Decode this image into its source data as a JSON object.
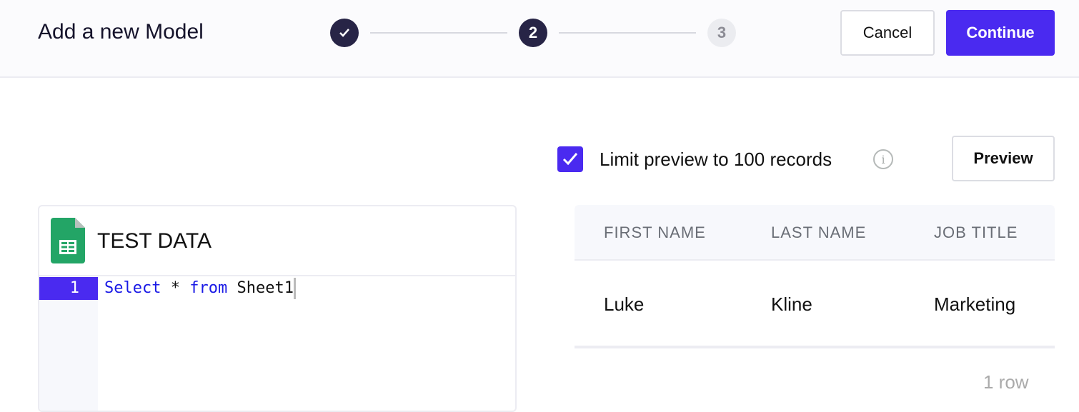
{
  "header": {
    "title": "Add a new Model",
    "steps": [
      {
        "state": "complete",
        "icon": "check-icon"
      },
      {
        "label": "2",
        "state": "current"
      },
      {
        "label": "3",
        "state": "upcoming"
      }
    ],
    "cancel_label": "Cancel",
    "continue_label": "Continue"
  },
  "preview": {
    "limit_checked": true,
    "limit_label": "Limit preview to 100 records",
    "info_icon": "info-icon",
    "preview_label": "Preview"
  },
  "table": {
    "columns": [
      "FIRST NAME",
      "LAST NAME",
      "JOB TITLE"
    ],
    "rows": [
      [
        "Luke",
        "Kline",
        "Marketing"
      ]
    ],
    "row_count": "1 row"
  },
  "editor": {
    "source_icon": "google-sheets-icon",
    "title": "TEST DATA",
    "line_number": "1",
    "code": {
      "kw1": "Select",
      "mid": " * ",
      "kw2": "from",
      "rest": " Sheet1"
    }
  },
  "colors": {
    "accent": "#4a2af0",
    "step_dark": "#272446"
  }
}
